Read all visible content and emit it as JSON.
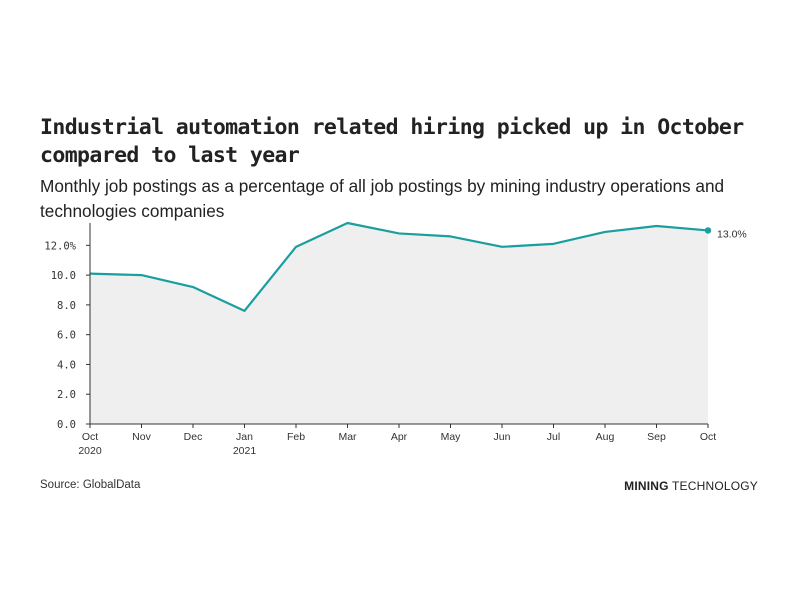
{
  "header": {
    "title": "Industrial automation related hiring picked up in October compared to last year",
    "subtitle": "Monthly job postings as a percentage of all job postings by mining industry operations and technologies companies"
  },
  "footer": {
    "source": "Source: GlobalData",
    "brand_strong": "MINING",
    "brand_light": "TECHNOLOGY"
  },
  "colors": {
    "line": "#1a9e9e",
    "area": "#efefef",
    "axis": "#333333"
  },
  "chart_data": {
    "type": "area",
    "title": "Industrial automation related hiring picked up in October compared to last year",
    "subtitle": "Monthly job postings as a percentage of all job postings by mining industry operations and technologies companies",
    "xlabel": "",
    "ylabel": "",
    "ylim": [
      0,
      13.5
    ],
    "y_ticks": [
      "0.0",
      "2.0",
      "4.0",
      "6.0",
      "8.0",
      "10.0",
      "12.0%"
    ],
    "y_tick_values": [
      0,
      2,
      4,
      6,
      8,
      10,
      12
    ],
    "categories": [
      "Oct",
      "Nov",
      "Dec",
      "Jan",
      "Feb",
      "Mar",
      "Apr",
      "May",
      "Jun",
      "Jul",
      "Aug",
      "Sep",
      "Oct"
    ],
    "category_years": [
      "2020",
      "",
      "",
      "2021",
      "",
      "",
      "",
      "",
      "",
      "",
      "",
      "",
      ""
    ],
    "values": [
      10.1,
      10.0,
      9.2,
      7.6,
      11.9,
      13.5,
      12.8,
      12.6,
      11.9,
      12.1,
      12.9,
      13.3,
      13.0
    ],
    "end_label": "13.0%",
    "grid": false,
    "legend": "none"
  }
}
